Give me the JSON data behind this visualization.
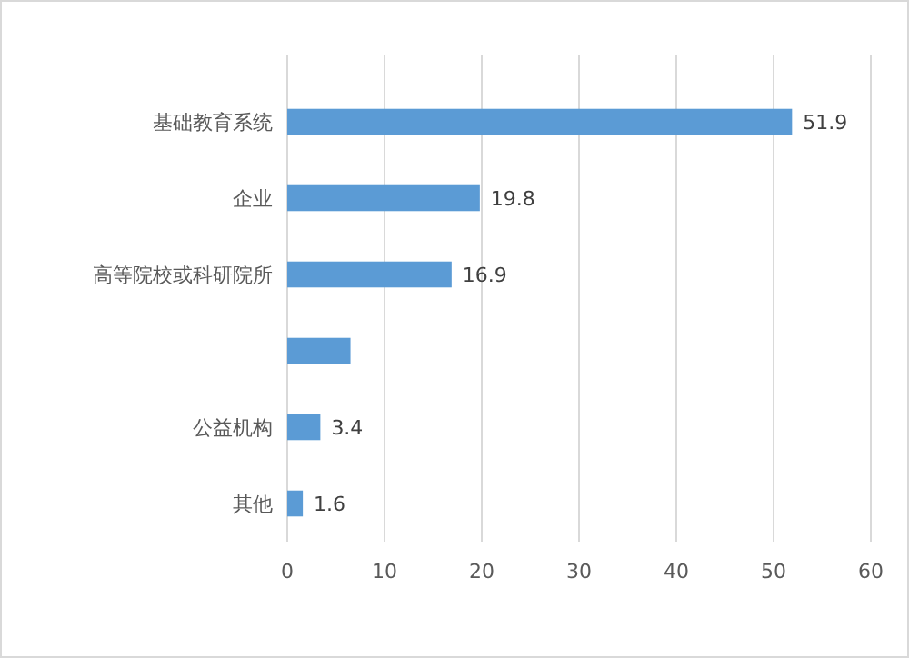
{
  "chart_data": {
    "type": "bar",
    "orientation": "horizontal",
    "categories": [
      "基础教育系统",
      "企业",
      "高等院校或科研院所",
      null,
      "公益机构",
      "其他"
    ],
    "values": [
      51.9,
      19.8,
      16.9,
      6.5,
      3.4,
      1.6
    ],
    "value_labels": [
      "51.9",
      "19.8",
      "16.9",
      null,
      "3.4",
      "1.6"
    ],
    "color": "#5b9bd5",
    "xlim": [
      0,
      60
    ],
    "xticks": [
      0,
      10,
      20,
      30,
      40,
      50,
      60
    ],
    "grid": "x"
  }
}
